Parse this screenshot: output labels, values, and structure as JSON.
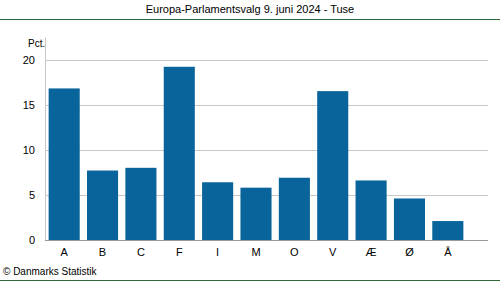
{
  "chart_data": {
    "type": "bar",
    "title": "Europa-Parlamentsvalg 9. juni 2024 - Tuse",
    "y_label": "Pct.",
    "caption": "© Danmarks Statistik",
    "categories": [
      "A",
      "B",
      "C",
      "F",
      "I",
      "M",
      "O",
      "V",
      "Æ",
      "Ø",
      "Å"
    ],
    "values": [
      16.8,
      7.7,
      8.0,
      19.2,
      6.4,
      5.8,
      6.9,
      16.5,
      6.6,
      4.6,
      2.1
    ],
    "color": "#08649a",
    "ylim": [
      0,
      22.5
    ],
    "yticks": [
      0,
      5,
      10,
      15,
      20
    ],
    "grid": true
  }
}
